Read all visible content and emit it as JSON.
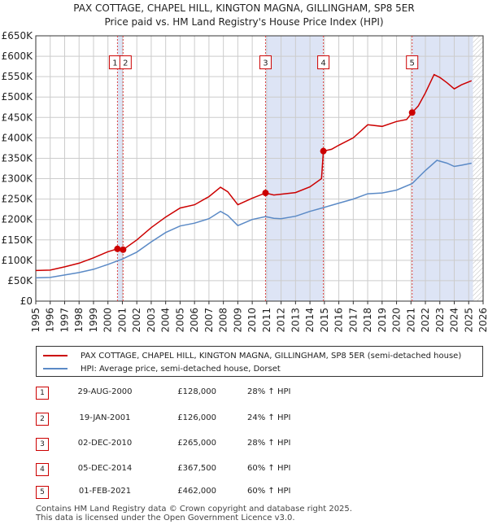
{
  "title": {
    "line1": "PAX COTTAGE, CHAPEL HILL, KINGTON MAGNA, GILLINGHAM, SP8 5ER",
    "line2": "Price paid vs. HM Land Registry's House Price Index (HPI)"
  },
  "colors": {
    "property": "#cc0000",
    "hpi": "#5b8ac6",
    "shade": "#dde4f5",
    "grid": "#cccccc",
    "marker_line": "#dd4444"
  },
  "chart_data": {
    "type": "line",
    "xlim": [
      1995,
      2026
    ],
    "ylim": [
      0,
      650000
    ],
    "x_ticks": [
      1995,
      1996,
      1997,
      1998,
      1999,
      2000,
      2001,
      2002,
      2003,
      2004,
      2005,
      2006,
      2007,
      2008,
      2009,
      2010,
      2011,
      2012,
      2013,
      2014,
      2015,
      2016,
      2017,
      2018,
      2019,
      2020,
      2021,
      2022,
      2023,
      2024,
      2025,
      2026
    ],
    "y_ticks": [
      {
        "value": 0,
        "label": "£0"
      },
      {
        "value": 50000,
        "label": "£50K"
      },
      {
        "value": 100000,
        "label": "£100K"
      },
      {
        "value": 150000,
        "label": "£150K"
      },
      {
        "value": 200000,
        "label": "£200K"
      },
      {
        "value": 250000,
        "label": "£250K"
      },
      {
        "value": 300000,
        "label": "£300K"
      },
      {
        "value": 350000,
        "label": "£350K"
      },
      {
        "value": 400000,
        "label": "£400K"
      },
      {
        "value": 450000,
        "label": "£450K"
      },
      {
        "value": 500000,
        "label": "£500K"
      },
      {
        "value": 550000,
        "label": "£550K"
      },
      {
        "value": 600000,
        "label": "£600K"
      },
      {
        "value": 650000,
        "label": "£650K"
      }
    ],
    "shaded_periods": [
      [
        2000.66,
        2001.05
      ],
      [
        2010.92,
        2014.93
      ],
      [
        2021.08,
        2025.3
      ]
    ],
    "hatched_after": 2025.3,
    "series": [
      {
        "name": "PAX COTTAGE, CHAPEL HILL, KINGTON MAGNA, GILLINGHAM, SP8 5ER (semi-detached house)",
        "points": [
          [
            1995,
            75000
          ],
          [
            1996,
            76000
          ],
          [
            1997,
            84000
          ],
          [
            1998,
            93000
          ],
          [
            1999,
            106000
          ],
          [
            2000,
            121000
          ],
          [
            2000.66,
            128000
          ],
          [
            2001.05,
            126000
          ],
          [
            2002,
            150000
          ],
          [
            2003,
            180000
          ],
          [
            2004,
            206000
          ],
          [
            2005,
            228000
          ],
          [
            2006,
            236000
          ],
          [
            2007,
            256000
          ],
          [
            2007.8,
            279000
          ],
          [
            2008.3,
            268000
          ],
          [
            2009,
            236000
          ],
          [
            2010,
            252000
          ],
          [
            2010.92,
            265000
          ],
          [
            2011.5,
            260000
          ],
          [
            2012,
            262000
          ],
          [
            2013,
            266000
          ],
          [
            2014,
            280000
          ],
          [
            2014.8,
            300000
          ],
          [
            2014.93,
            367500
          ],
          [
            2015.5,
            372000
          ],
          [
            2016,
            382000
          ],
          [
            2017,
            400000
          ],
          [
            2018,
            432000
          ],
          [
            2019,
            428000
          ],
          [
            2020,
            440000
          ],
          [
            2020.7,
            445000
          ],
          [
            2021.08,
            462000
          ],
          [
            2021.5,
            478000
          ],
          [
            2022,
            510000
          ],
          [
            2022.6,
            555000
          ],
          [
            2023,
            548000
          ],
          [
            2023.5,
            535000
          ],
          [
            2024,
            520000
          ],
          [
            2024.5,
            530000
          ],
          [
            2025.2,
            540000
          ]
        ]
      },
      {
        "name": "HPI: Average price, semi-detached house, Dorset",
        "points": [
          [
            1995,
            57000
          ],
          [
            1996,
            58000
          ],
          [
            1997,
            64000
          ],
          [
            1998,
            70000
          ],
          [
            1999,
            78000
          ],
          [
            2000,
            90000
          ],
          [
            2001,
            103000
          ],
          [
            2002,
            120000
          ],
          [
            2003,
            145000
          ],
          [
            2004,
            168000
          ],
          [
            2005,
            184000
          ],
          [
            2006,
            191000
          ],
          [
            2007,
            202000
          ],
          [
            2007.8,
            220000
          ],
          [
            2008.3,
            210000
          ],
          [
            2009,
            185000
          ],
          [
            2010,
            200000
          ],
          [
            2010.92,
            207000
          ],
          [
            2011.5,
            203000
          ],
          [
            2012,
            202000
          ],
          [
            2013,
            208000
          ],
          [
            2014,
            220000
          ],
          [
            2014.93,
            229000
          ],
          [
            2016,
            240000
          ],
          [
            2017,
            250000
          ],
          [
            2018,
            263000
          ],
          [
            2019,
            265000
          ],
          [
            2020,
            272000
          ],
          [
            2021.08,
            288000
          ],
          [
            2022,
            320000
          ],
          [
            2022.8,
            345000
          ],
          [
            2023.5,
            338000
          ],
          [
            2024,
            330000
          ],
          [
            2024.5,
            333000
          ],
          [
            2025.2,
            338000
          ]
        ]
      }
    ],
    "sales": [
      {
        "id": "1",
        "x": 2000.66,
        "y": 128000,
        "label_y": 585000
      },
      {
        "id": "2",
        "x": 2001.05,
        "y": 126000,
        "label_y": 585000
      },
      {
        "id": "3",
        "x": 2010.92,
        "y": 265000,
        "label_y": 585000
      },
      {
        "id": "4",
        "x": 2014.93,
        "y": 367500,
        "label_y": 585000
      },
      {
        "id": "5",
        "x": 2021.08,
        "y": 462000,
        "label_y": 585000
      }
    ]
  },
  "legend": {
    "property_label": "PAX COTTAGE, CHAPEL HILL, KINGTON MAGNA, GILLINGHAM, SP8 5ER (semi-detached house)",
    "hpi_label": "HPI: Average price, semi-detached house, Dorset"
  },
  "transactions": [
    {
      "num": "1",
      "date": "29-AUG-2000",
      "price": "£128,000",
      "hpi": "28% ↑ HPI"
    },
    {
      "num": "2",
      "date": "19-JAN-2001",
      "price": "£126,000",
      "hpi": "24% ↑ HPI"
    },
    {
      "num": "3",
      "date": "02-DEC-2010",
      "price": "£265,000",
      "hpi": "28% ↑ HPI"
    },
    {
      "num": "4",
      "date": "05-DEC-2014",
      "price": "£367,500",
      "hpi": "60% ↑ HPI"
    },
    {
      "num": "5",
      "date": "01-FEB-2021",
      "price": "£462,000",
      "hpi": "60% ↑ HPI"
    }
  ],
  "footer": {
    "line1": "Contains HM Land Registry data © Crown copyright and database right 2025.",
    "line2": "This data is licensed under the Open Government Licence v3.0."
  }
}
